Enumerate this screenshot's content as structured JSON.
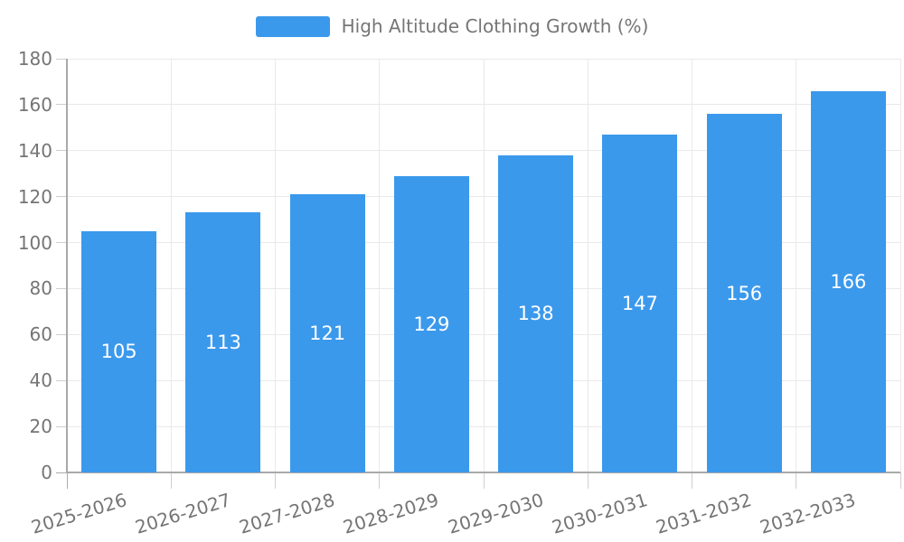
{
  "legend": {
    "label": "High Altitude Clothing Growth (%)"
  },
  "colors": {
    "bar": "#3b99ec",
    "axis": "#a9a9a9",
    "grid": "#e9e9e9",
    "tick": "#cfcfcf",
    "text": "#757575",
    "bar_label": "#ffffff"
  },
  "chart_data": {
    "type": "bar",
    "title": "",
    "categories": [
      "2025-2026",
      "2026-2027",
      "2027-2028",
      "2028-2029",
      "2029-2030",
      "2030-2031",
      "2031-2032",
      "2032-2033"
    ],
    "series": [
      {
        "name": "High Altitude Clothing Growth (%)",
        "values": [
          105,
          113,
          121,
          129,
          138,
          147,
          156,
          166
        ]
      }
    ],
    "value_labels": [
      105,
      113,
      121,
      129,
      138,
      147,
      156,
      166
    ],
    "value_label_position": "inside-center",
    "xlabel": "",
    "ylabel": "",
    "ylim": [
      0,
      180
    ],
    "yticks": [
      0,
      20,
      40,
      60,
      80,
      100,
      120,
      140,
      160,
      180
    ],
    "grid": true,
    "legend_position": "top-center",
    "x_label_rotation_deg": -17
  }
}
